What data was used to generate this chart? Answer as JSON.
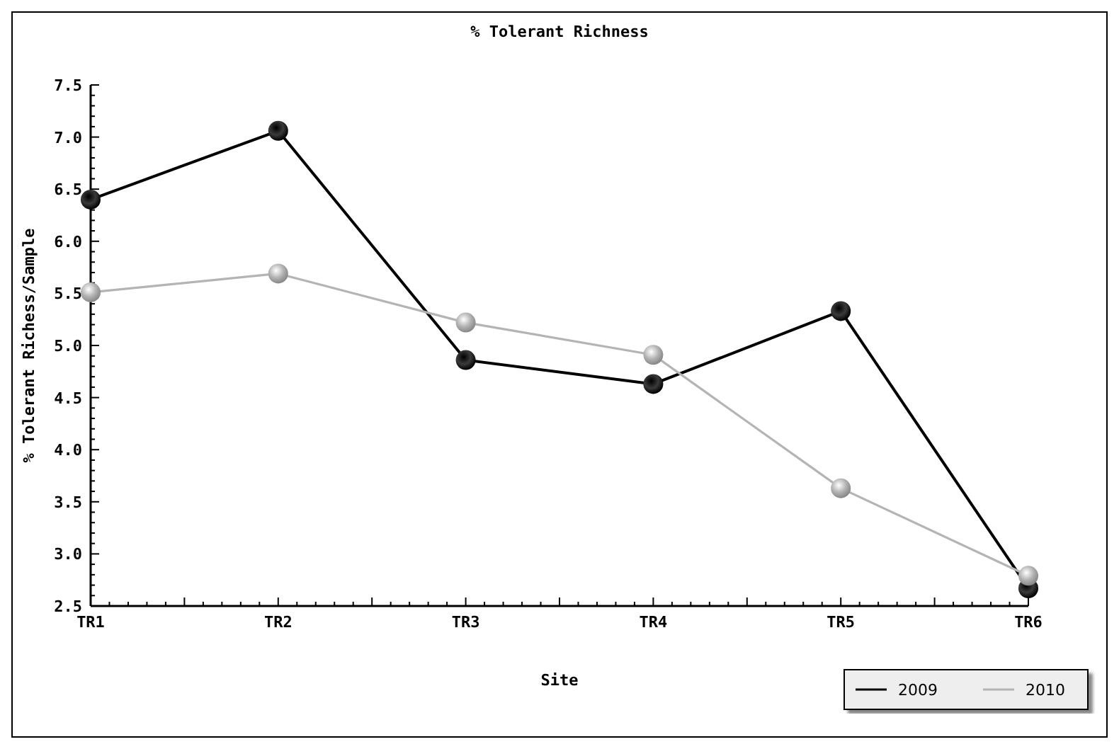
{
  "chart_data": {
    "type": "line",
    "title": "% Tolerant Richness",
    "xlabel": "Site",
    "ylabel": "% Tolerant Richess/Sample",
    "categories": [
      "TR1",
      "TR2",
      "TR3",
      "TR4",
      "TR5",
      "TR6"
    ],
    "series": [
      {
        "name": "2009",
        "color": "#000000",
        "values": [
          6.4,
          7.06,
          4.86,
          4.63,
          5.33,
          2.67
        ]
      },
      {
        "name": "2010",
        "color": "#b4b4b4",
        "values": [
          5.51,
          5.69,
          5.22,
          4.91,
          3.63,
          2.79
        ]
      }
    ],
    "ylim": [
      2.5,
      7.5
    ],
    "yticks": [
      {
        "value": 2.5,
        "label": "2.5"
      },
      {
        "value": 3,
        "label": "3.0"
      },
      {
        "value": 3.5,
        "label": "3.5"
      },
      {
        "value": 4,
        "label": "4.0"
      },
      {
        "value": 4.5,
        "label": "4.5"
      },
      {
        "value": 5,
        "label": "5.0"
      },
      {
        "value": 5.5,
        "label": "5.5"
      },
      {
        "value": 6,
        "label": "6.0"
      },
      {
        "value": 6.5,
        "label": "6.5"
      },
      {
        "value": 7,
        "label": "7.0"
      },
      {
        "value": 7.5,
        "label": "7.5"
      }
    ],
    "grid": false,
    "legend": "bottom right",
    "marker": "circle",
    "line_style": "solid"
  }
}
